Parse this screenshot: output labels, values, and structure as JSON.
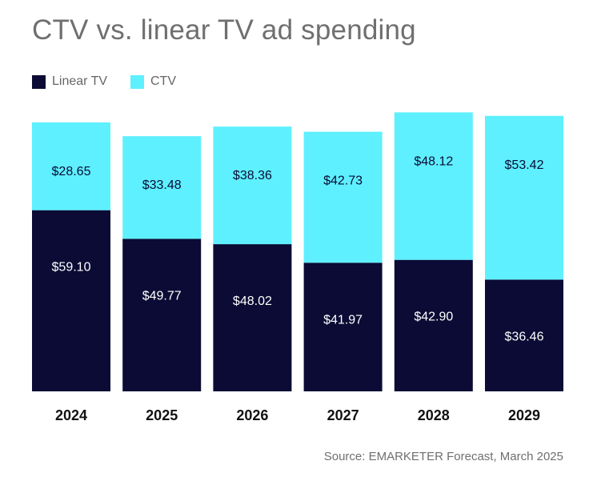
{
  "chart_data": {
    "type": "bar",
    "stacked": true,
    "title": "CTV vs. linear TV ad spending",
    "categories": [
      "2024",
      "2025",
      "2026",
      "2027",
      "2028",
      "2029"
    ],
    "series": [
      {
        "name": "Linear TV",
        "color": "#0b0b35",
        "values": [
          59.1,
          49.77,
          48.02,
          41.97,
          42.9,
          36.46
        ],
        "labels": [
          "$59.10",
          "$49.77",
          "$48.02",
          "$41.97",
          "$42.90",
          "$36.46"
        ]
      },
      {
        "name": "CTV",
        "color": "#5ef0ff",
        "values": [
          28.65,
          33.48,
          38.36,
          42.73,
          48.12,
          53.42
        ],
        "labels": [
          "$28.65",
          "$33.48",
          "$38.36",
          "$42.73",
          "$48.12",
          "$53.42"
        ]
      }
    ],
    "legend": "top-left",
    "grid": false,
    "source": "Source: EMARKETER Forecast, March 2025"
  }
}
